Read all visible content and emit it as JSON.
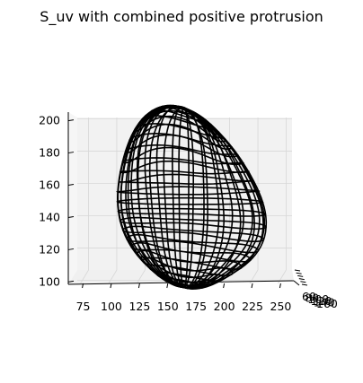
{
  "chart_data": {
    "type": "wireframe-3d",
    "title": "S_uv with combined positive protrusion",
    "x_ticks": [
      "75",
      "100",
      "125",
      "150",
      "175",
      "200",
      "225",
      "250"
    ],
    "y_ticks": [
      "60",
      "80",
      "100",
      "120",
      "140",
      "160"
    ],
    "z_ticks": [
      "100",
      "120",
      "140",
      "160",
      "180",
      "200"
    ],
    "xlim": [
      65,
      260
    ],
    "zlim": [
      98,
      202
    ],
    "surface": {
      "center": [
        164,
        110,
        150
      ],
      "radius": 55,
      "protrusion_x_offset": 32,
      "protrusion_z_offset": 28,
      "u_lines": 30,
      "v_lines": 24
    },
    "grid": true,
    "colors": {
      "wire": "#000000",
      "pane_back": "#f2f2f2",
      "pane_side": "#f6f6f6",
      "grid": "#d7d7d7"
    }
  }
}
